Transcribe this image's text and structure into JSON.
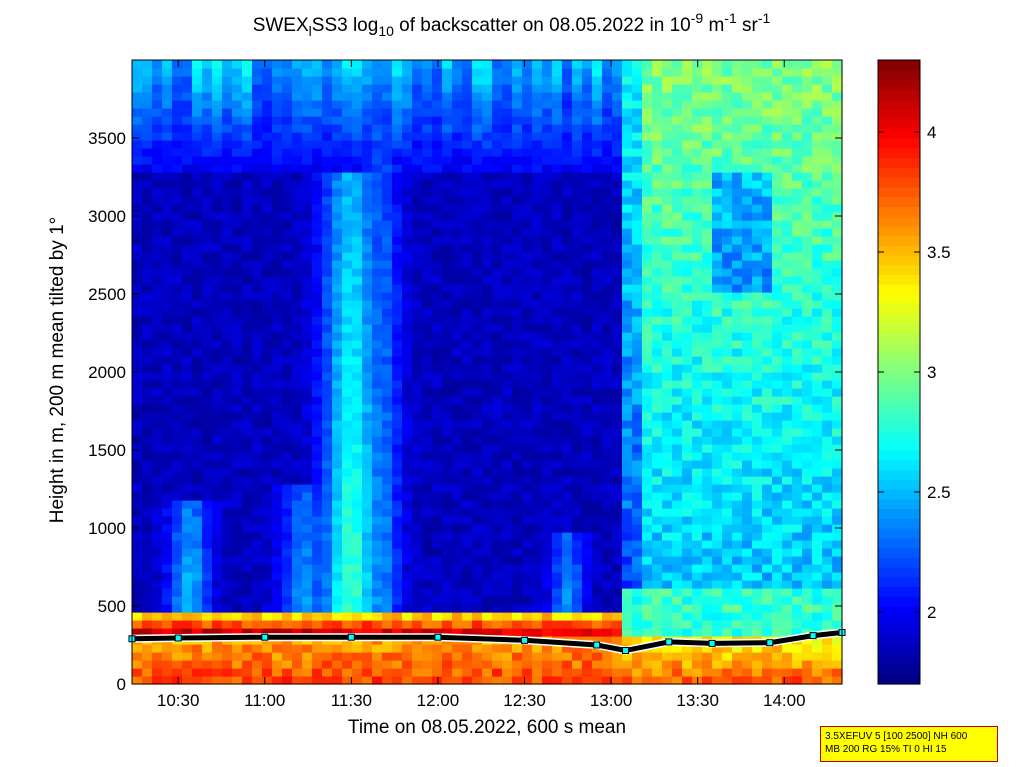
{
  "title": {
    "part1": "SWEX",
    "sub1": "l",
    "part2": "SS3 log",
    "sub2": "10",
    "part3": " of backscatter on 08.05.2022 in 10",
    "sup1": "-9",
    "part4": " m",
    "sup2": "-1",
    "part5": " sr",
    "sup3": "-1"
  },
  "info_box": {
    "line1": "3.5XEFUV 5 [100 2500] NH 600",
    "line2": "MB 200 RG 15% TI 0 HI 15"
  },
  "chart_data": {
    "type": "heatmap",
    "title": "SWEXlSS3 log10 of backscatter on 08.05.2022 in 10-9 m-1 sr-1",
    "xlabel": "Time on 08.05.2022, 600 s mean",
    "ylabel": "Height in m, 200 m mean tilted by 1°",
    "xlim": [
      "10:14",
      "14:20"
    ],
    "ylim": [
      0,
      4000
    ],
    "x_ticks": [
      "10:30",
      "11:00",
      "11:30",
      "12:00",
      "12:30",
      "13:00",
      "13:30",
      "14:00"
    ],
    "y_ticks": [
      0,
      500,
      1000,
      1500,
      2000,
      2500,
      3000,
      3500
    ],
    "colorbar": {
      "range": [
        1.7,
        4.3
      ],
      "ticks": [
        "2",
        "2.5",
        "3",
        "3.5",
        "4"
      ],
      "colormap": "jet"
    },
    "features": [
      {
        "name": "boundary layer top",
        "time_range": [
          "10:14",
          "13:05"
        ],
        "height_m": [
          420,
          480
        ]
      },
      {
        "name": "low aerosol layer",
        "time_range": [
          "10:14",
          "14:20"
        ],
        "height_m": [
          0,
          330
        ]
      },
      {
        "name": "elevated backscatter plume",
        "time": "11:30",
        "height_m": [
          600,
          3000
        ]
      },
      {
        "name": "high backscatter region",
        "time_range": [
          "13:05",
          "14:20"
        ],
        "height_m": [
          0,
          4000
        ]
      }
    ],
    "layer_height_series": [
      {
        "values_time": [
          "10:14",
          "10:30",
          "11:00",
          "11:30",
          "12:00",
          "12:30",
          "12:55",
          "13:05",
          "13:20",
          "13:35",
          "13:55",
          "14:10",
          "14:20"
        ],
        "values_height_m": [
          290,
          295,
          300,
          300,
          300,
          280,
          250,
          215,
          270,
          260,
          265,
          310,
          330
        ]
      }
    ],
    "colors": {
      "jet_low": "#00008f",
      "jet_mid": "#00ffff",
      "jet_high": "#800000"
    }
  }
}
